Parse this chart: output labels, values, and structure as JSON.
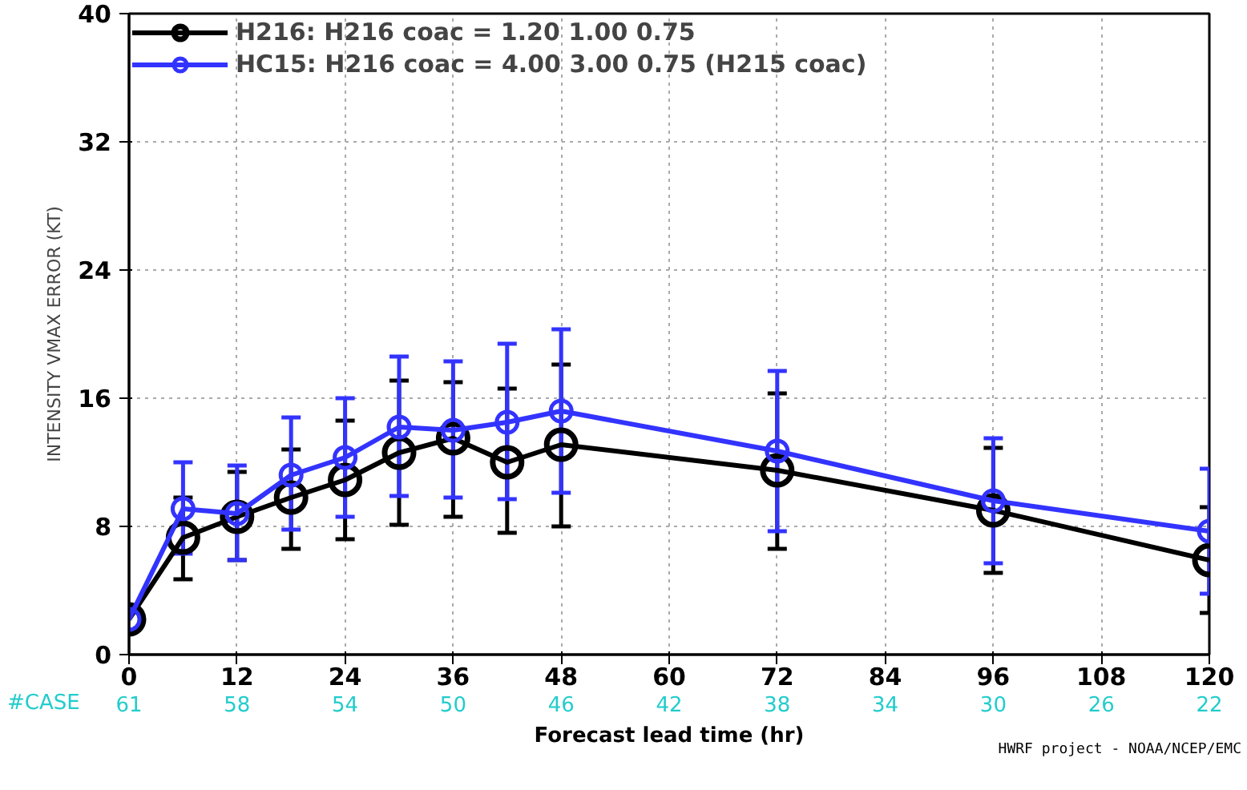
{
  "chart_data": {
    "type": "line",
    "ylabel": "INTENSITY VMAX ERROR (KT)",
    "xlabel": "Forecast lead time (hr)",
    "x": [
      0,
      6,
      12,
      18,
      24,
      30,
      36,
      42,
      48,
      72,
      96,
      120
    ],
    "xlim": [
      0,
      120
    ],
    "xticks": [
      0,
      12,
      24,
      36,
      48,
      60,
      72,
      84,
      96,
      108,
      120
    ],
    "ylim": [
      0,
      40
    ],
    "yticks": [
      0,
      8,
      16,
      24,
      32,
      40
    ],
    "grid": true,
    "legend": "top left",
    "marker": "circle",
    "line_style": "solid",
    "series": [
      {
        "name": "H216: H216 coac = 1.20 1.00 0.75",
        "color": "#000000",
        "values": [
          2.2,
          7.3,
          8.6,
          9.8,
          10.9,
          12.6,
          13.5,
          12.0,
          13.1,
          11.5,
          9.0,
          5.9
        ],
        "errors": [
          null,
          [
            4.7,
            9.8
          ],
          [
            5.9,
            11.4
          ],
          [
            6.6,
            12.8
          ],
          [
            7.2,
            14.6
          ],
          [
            8.1,
            17.1
          ],
          [
            8.6,
            17.0
          ],
          [
            7.6,
            16.6
          ],
          [
            8.0,
            18.1
          ],
          [
            6.6,
            16.3
          ],
          [
            5.1,
            12.9
          ],
          [
            2.6,
            9.2
          ]
        ]
      },
      {
        "name": "HC15: H216 coac = 4.00 3.00 0.75 (H215 coac)",
        "color": "#3333ff",
        "values": [
          2.2,
          9.1,
          8.8,
          11.2,
          12.3,
          14.2,
          14.0,
          14.5,
          15.2,
          12.7,
          9.6,
          7.7
        ],
        "errors": [
          null,
          [
            6.3,
            12.0
          ],
          [
            5.9,
            11.8
          ],
          [
            7.8,
            14.8
          ],
          [
            8.6,
            16.0
          ],
          [
            9.9,
            18.6
          ],
          [
            9.8,
            18.3
          ],
          [
            9.7,
            19.4
          ],
          [
            10.1,
            20.3
          ],
          [
            7.7,
            17.7
          ],
          [
            5.7,
            13.5
          ],
          [
            3.8,
            11.6
          ]
        ]
      }
    ],
    "annotations": [
      "#CASE",
      "61",
      "58",
      "54",
      "50",
      "46",
      "42",
      "38",
      "34",
      "30",
      "26",
      "22",
      "HWRF project - NOAA/NCEP/EMC"
    ]
  }
}
